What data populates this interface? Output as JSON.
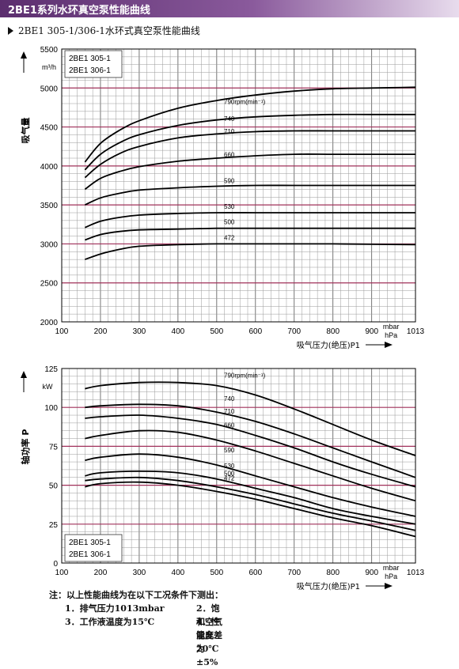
{
  "header": {
    "title": "2BE1系列水环真空泵性能曲线",
    "subtitle": "2BE1 305-1/306-1水环式真空泵性能曲线"
  },
  "colors": {
    "banner": "#6f3f82",
    "grid": "#555555",
    "highlight_grid": "#a0305a",
    "curve": "#000000"
  },
  "chart_data": [
    {
      "type": "line",
      "ylabel": "吸气量",
      "yunit": "m³/h",
      "xlabel": "吸气压力(绝压)P1",
      "xunit_top": "mbar",
      "xunit_bottom": "hPa",
      "xlim": [
        100,
        1013
      ],
      "ylim": [
        2000,
        5500
      ],
      "xticks": [
        "100",
        "200",
        "300",
        "400",
        "500",
        "600",
        "700",
        "800",
        "900",
        "1013"
      ],
      "yticks": [
        "2000",
        "2500",
        "3000",
        "3500",
        "4000",
        "4500",
        "5000",
        "5500"
      ],
      "models": [
        "2BE1 305-1",
        "2BE1 306-1"
      ],
      "series": [
        {
          "name": "790rpm(min⁻¹)",
          "x": [
            160,
            200,
            250,
            300,
            400,
            500,
            600,
            700,
            800,
            900,
            1013
          ],
          "y": [
            4050,
            4290,
            4460,
            4580,
            4740,
            4840,
            4910,
            4960,
            4990,
            5000,
            5010
          ]
        },
        {
          "name": "740",
          "x": [
            160,
            200,
            250,
            300,
            400,
            500,
            600,
            700,
            800,
            900,
            1013
          ],
          "y": [
            3950,
            4150,
            4300,
            4400,
            4520,
            4590,
            4630,
            4650,
            4660,
            4660,
            4660
          ]
        },
        {
          "name": "710",
          "x": [
            160,
            200,
            250,
            300,
            400,
            500,
            600,
            700,
            800,
            900,
            1013
          ],
          "y": [
            3850,
            4020,
            4160,
            4250,
            4360,
            4410,
            4440,
            4450,
            4450,
            4450,
            4450
          ]
        },
        {
          "name": "660",
          "x": [
            160,
            200,
            250,
            300,
            400,
            500,
            600,
            700,
            800,
            900,
            1013
          ],
          "y": [
            3700,
            3840,
            3930,
            3990,
            4060,
            4100,
            4130,
            4150,
            4150,
            4150,
            4150
          ]
        },
        {
          "name": "590",
          "x": [
            160,
            200,
            250,
            300,
            400,
            500,
            600,
            700,
            800,
            900,
            1013
          ],
          "y": [
            3500,
            3590,
            3650,
            3690,
            3720,
            3740,
            3750,
            3750,
            3750,
            3750,
            3750
          ]
        },
        {
          "name": "530",
          "x": [
            160,
            200,
            250,
            300,
            400,
            500,
            600,
            700,
            800,
            900,
            1013
          ],
          "y": [
            3210,
            3290,
            3340,
            3370,
            3390,
            3400,
            3400,
            3400,
            3400,
            3400,
            3400
          ]
        },
        {
          "name": "500",
          "x": [
            160,
            200,
            250,
            300,
            400,
            500,
            600,
            700,
            800,
            900,
            1013
          ],
          "y": [
            3050,
            3120,
            3160,
            3180,
            3190,
            3200,
            3200,
            3200,
            3200,
            3200,
            3200
          ]
        },
        {
          "name": "472",
          "x": [
            160,
            200,
            250,
            300,
            400,
            500,
            600,
            700,
            800,
            900,
            1013
          ],
          "y": [
            2800,
            2870,
            2930,
            2970,
            2990,
            3000,
            3000,
            3000,
            3000,
            2995,
            2990
          ]
        }
      ],
      "grid": true
    },
    {
      "type": "line",
      "ylabel": "轴功率 P",
      "yunit": "kW",
      "xlabel": "吸气压力(绝压)P1",
      "xunit_top": "mbar",
      "xunit_bottom": "hPa",
      "xlim": [
        100,
        1013
      ],
      "ylim": [
        0,
        125
      ],
      "xticks": [
        "100",
        "200",
        "300",
        "400",
        "500",
        "600",
        "700",
        "800",
        "900",
        "1013"
      ],
      "yticks": [
        "0",
        "25",
        "50",
        "75",
        "100",
        "125"
      ],
      "models": [
        "2BE1 305-1",
        "2BE1 306-1"
      ],
      "series": [
        {
          "name": "790rpm(min⁻¹)",
          "x": [
            160,
            200,
            300,
            400,
            500,
            600,
            700,
            800,
            900,
            1013
          ],
          "y": [
            112,
            114,
            116,
            116,
            114,
            108,
            99,
            89,
            79,
            69
          ]
        },
        {
          "name": "740",
          "x": [
            160,
            200,
            300,
            400,
            500,
            600,
            700,
            800,
            900,
            1013
          ],
          "y": [
            100,
            101,
            102,
            101,
            97,
            91,
            83,
            74,
            65,
            55
          ]
        },
        {
          "name": "710",
          "x": [
            160,
            200,
            300,
            400,
            500,
            600,
            700,
            800,
            900,
            1013
          ],
          "y": [
            93,
            94,
            95,
            93,
            89,
            82,
            74,
            65,
            57,
            49
          ]
        },
        {
          "name": "660",
          "x": [
            160,
            200,
            300,
            400,
            500,
            600,
            700,
            800,
            900,
            1013
          ],
          "y": [
            80,
            82,
            85,
            84,
            79,
            72,
            64,
            56,
            48,
            40
          ]
        },
        {
          "name": "590",
          "x": [
            160,
            200,
            300,
            400,
            500,
            600,
            700,
            800,
            900,
            1013
          ],
          "y": [
            66,
            68,
            70,
            68,
            63,
            56,
            49,
            42,
            36,
            30
          ]
        },
        {
          "name": "530",
          "x": [
            160,
            200,
            300,
            400,
            500,
            600,
            700,
            800,
            900,
            1013
          ],
          "y": [
            56,
            58,
            59,
            58,
            54,
            48,
            42,
            35,
            30,
            25
          ]
        },
        {
          "name": "500",
          "x": [
            160,
            200,
            300,
            400,
            500,
            600,
            700,
            800,
            900,
            1013
          ],
          "y": [
            53,
            54,
            55,
            53,
            49,
            44,
            38,
            32,
            27,
            21
          ]
        },
        {
          "name": "472",
          "x": [
            160,
            200,
            300,
            400,
            500,
            600,
            700,
            800,
            900,
            1013
          ],
          "y": [
            49,
            51,
            52,
            50,
            46,
            41,
            35,
            29,
            24,
            17
          ]
        }
      ],
      "grid": true
    }
  ],
  "notes": {
    "heading": "注：以上性能曲线为在以下工况条件下测出：",
    "items": [
      "1．排气压力1013mbar",
      "2．饱和空气温度20℃",
      "3．工作液温度为15℃",
      "4．性能允差为±5%"
    ]
  }
}
